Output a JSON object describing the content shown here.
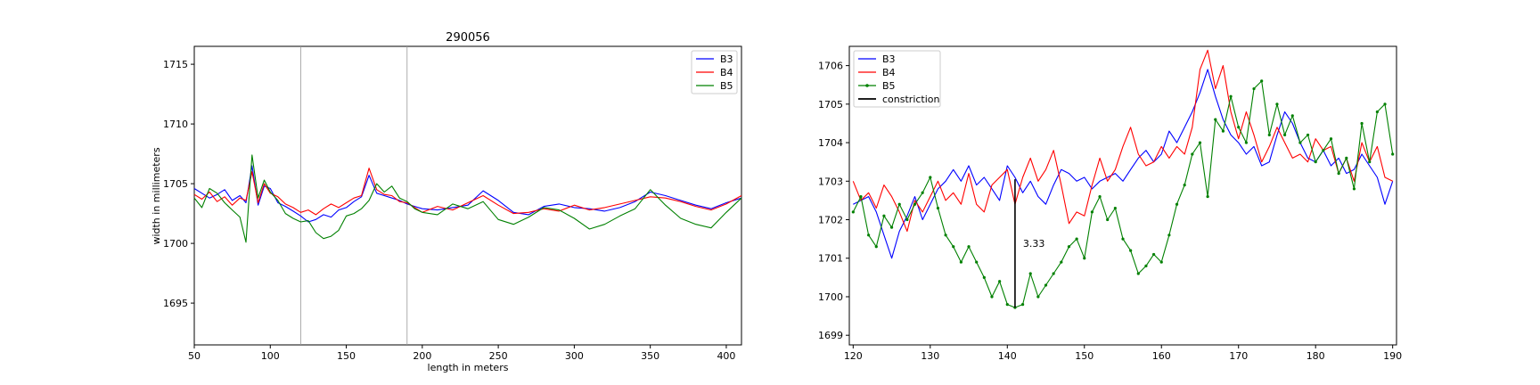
{
  "chart_data": [
    {
      "type": "line",
      "title": "290056",
      "xlabel": "length in meters",
      "ylabel": "width in millimeters",
      "xlim": [
        50,
        410
      ],
      "ylim": [
        1691.5,
        1716.5
      ],
      "xticks": [
        50,
        100,
        150,
        200,
        250,
        300,
        350,
        400
      ],
      "yticks": [
        1695,
        1700,
        1705,
        1710,
        1715
      ],
      "vlines": [
        120,
        190
      ],
      "legend_position": "top-right",
      "grid": false,
      "series": [
        {
          "name": "B3",
          "color": "#0000ff",
          "x": [
            50,
            55,
            60,
            65,
            70,
            75,
            80,
            84,
            88,
            92,
            96,
            100,
            105,
            110,
            115,
            120,
            125,
            130,
            135,
            140,
            145,
            150,
            155,
            160,
            165,
            170,
            175,
            180,
            185,
            190,
            195,
            200,
            210,
            220,
            230,
            240,
            250,
            260,
            270,
            280,
            290,
            300,
            310,
            320,
            330,
            340,
            350,
            360,
            370,
            380,
            390,
            400,
            410
          ],
          "y": [
            1704.6,
            1704.2,
            1703.8,
            1704.1,
            1704.5,
            1703.6,
            1704.0,
            1703.4,
            1706.5,
            1703.2,
            1704.8,
            1704.6,
            1703.4,
            1703.1,
            1702.7,
            1702.3,
            1701.8,
            1702.0,
            1702.4,
            1702.2,
            1702.8,
            1703.0,
            1703.5,
            1703.9,
            1705.7,
            1704.2,
            1704.0,
            1703.8,
            1703.6,
            1703.3,
            1703.1,
            1702.9,
            1702.8,
            1703.0,
            1703.2,
            1704.4,
            1703.6,
            1702.6,
            1702.4,
            1703.1,
            1703.3,
            1703.0,
            1702.9,
            1702.7,
            1703.0,
            1703.5,
            1704.3,
            1704.0,
            1703.6,
            1703.2,
            1702.9,
            1703.4,
            1703.8
          ]
        },
        {
          "name": "B4",
          "color": "#ff0000",
          "x": [
            50,
            55,
            60,
            65,
            70,
            75,
            80,
            84,
            88,
            92,
            96,
            100,
            105,
            110,
            115,
            120,
            125,
            130,
            135,
            140,
            145,
            150,
            155,
            160,
            165,
            170,
            175,
            180,
            185,
            190,
            195,
            200,
            210,
            220,
            230,
            240,
            250,
            260,
            270,
            280,
            290,
            300,
            310,
            320,
            330,
            340,
            350,
            360,
            370,
            380,
            390,
            400,
            410
          ],
          "y": [
            1704.1,
            1703.7,
            1704.3,
            1703.5,
            1703.9,
            1703.2,
            1703.8,
            1703.6,
            1706.0,
            1703.4,
            1705.0,
            1704.2,
            1703.9,
            1703.3,
            1703.0,
            1702.6,
            1702.8,
            1702.4,
            1702.9,
            1703.3,
            1703.0,
            1703.4,
            1703.8,
            1704.0,
            1706.3,
            1704.5,
            1704.1,
            1704.0,
            1703.5,
            1703.4,
            1703.0,
            1702.6,
            1703.1,
            1702.8,
            1703.4,
            1704.0,
            1703.2,
            1702.5,
            1702.6,
            1702.9,
            1702.7,
            1703.2,
            1702.8,
            1703.0,
            1703.3,
            1703.6,
            1703.9,
            1703.8,
            1703.5,
            1703.1,
            1702.8,
            1703.3,
            1704.0
          ]
        },
        {
          "name": "B5",
          "color": "#008000",
          "x": [
            50,
            55,
            60,
            65,
            70,
            75,
            80,
            84,
            88,
            92,
            96,
            100,
            105,
            110,
            115,
            120,
            125,
            130,
            135,
            140,
            145,
            150,
            155,
            160,
            165,
            170,
            175,
            180,
            185,
            190,
            195,
            200,
            210,
            220,
            230,
            240,
            250,
            260,
            270,
            280,
            290,
            300,
            310,
            320,
            330,
            340,
            350,
            360,
            370,
            380,
            390,
            400,
            410
          ],
          "y": [
            1703.8,
            1703.0,
            1704.6,
            1704.2,
            1703.4,
            1702.8,
            1702.2,
            1700.1,
            1707.4,
            1703.8,
            1705.3,
            1704.3,
            1703.6,
            1702.5,
            1702.1,
            1701.8,
            1701.9,
            1700.9,
            1700.4,
            1700.6,
            1701.1,
            1702.3,
            1702.5,
            1702.9,
            1703.6,
            1705.0,
            1704.3,
            1704.8,
            1703.8,
            1703.5,
            1702.9,
            1702.6,
            1702.4,
            1703.3,
            1702.9,
            1703.5,
            1702.0,
            1701.6,
            1702.2,
            1703.0,
            1702.8,
            1702.1,
            1701.2,
            1701.6,
            1702.3,
            1702.9,
            1704.5,
            1703.2,
            1702.1,
            1701.6,
            1701.3,
            1702.6,
            1703.8
          ]
        }
      ]
    },
    {
      "type": "line",
      "title": "",
      "xlabel": "",
      "ylabel": "",
      "xlim": [
        119.5,
        190.5
      ],
      "ylim": [
        1698.75,
        1706.5
      ],
      "xticks": [
        120,
        130,
        140,
        150,
        160,
        170,
        180,
        190
      ],
      "yticks": [
        1699,
        1700,
        1701,
        1702,
        1703,
        1704,
        1705,
        1706
      ],
      "legend_position": "top-left",
      "grid": false,
      "constriction": {
        "x": 141,
        "y_top": 1703.05,
        "y_bottom": 1699.72,
        "label": "3.33"
      },
      "series": [
        {
          "name": "B3",
          "color": "#0000ff",
          "marker": false,
          "x": [
            120,
            121,
            122,
            123,
            124,
            125,
            126,
            127,
            128,
            129,
            130,
            131,
            132,
            133,
            134,
            135,
            136,
            137,
            138,
            139,
            140,
            141,
            142,
            143,
            144,
            145,
            146,
            147,
            148,
            149,
            150,
            151,
            152,
            153,
            154,
            155,
            156,
            157,
            158,
            159,
            160,
            161,
            162,
            163,
            164,
            165,
            166,
            167,
            168,
            169,
            170,
            171,
            172,
            173,
            174,
            175,
            176,
            177,
            178,
            179,
            180,
            181,
            182,
            183,
            184,
            185,
            186,
            187,
            188,
            189,
            190
          ],
          "y": [
            1702.4,
            1702.5,
            1702.6,
            1702.2,
            1701.6,
            1701.0,
            1701.7,
            1702.1,
            1702.6,
            1702.0,
            1702.4,
            1702.8,
            1703.0,
            1703.3,
            1703.0,
            1703.4,
            1702.9,
            1703.1,
            1702.8,
            1702.5,
            1703.4,
            1703.1,
            1702.7,
            1703.0,
            1702.6,
            1702.4,
            1702.9,
            1703.3,
            1703.2,
            1703.0,
            1703.1,
            1702.8,
            1703.0,
            1703.1,
            1703.2,
            1703.0,
            1703.3,
            1703.6,
            1703.8,
            1703.5,
            1703.7,
            1704.3,
            1704.0,
            1704.4,
            1704.8,
            1705.3,
            1705.9,
            1705.2,
            1704.6,
            1704.2,
            1704.0,
            1703.7,
            1703.9,
            1703.4,
            1703.5,
            1704.2,
            1704.8,
            1704.5,
            1704.0,
            1703.6,
            1703.5,
            1703.8,
            1703.4,
            1703.6,
            1703.2,
            1703.3,
            1703.7,
            1703.4,
            1703.1,
            1702.4,
            1703.0
          ]
        },
        {
          "name": "B4",
          "color": "#ff0000",
          "marker": false,
          "x": [
            120,
            121,
            122,
            123,
            124,
            125,
            126,
            127,
            128,
            129,
            130,
            131,
            132,
            133,
            134,
            135,
            136,
            137,
            138,
            139,
            140,
            141,
            142,
            143,
            144,
            145,
            146,
            147,
            148,
            149,
            150,
            151,
            152,
            153,
            154,
            155,
            156,
            157,
            158,
            159,
            160,
            161,
            162,
            163,
            164,
            165,
            166,
            167,
            168,
            169,
            170,
            171,
            172,
            173,
            174,
            175,
            176,
            177,
            178,
            179,
            180,
            181,
            182,
            183,
            184,
            185,
            186,
            187,
            188,
            189,
            190
          ],
          "y": [
            1703.0,
            1702.5,
            1702.7,
            1702.3,
            1702.9,
            1702.6,
            1702.2,
            1701.7,
            1702.5,
            1702.2,
            1702.6,
            1703.0,
            1702.5,
            1702.7,
            1702.4,
            1703.2,
            1702.4,
            1702.2,
            1702.9,
            1703.1,
            1703.3,
            1702.4,
            1703.1,
            1703.6,
            1703.0,
            1703.3,
            1703.8,
            1702.9,
            1701.9,
            1702.2,
            1702.1,
            1702.9,
            1703.6,
            1703.0,
            1703.3,
            1703.9,
            1704.4,
            1703.7,
            1703.4,
            1703.5,
            1703.9,
            1703.6,
            1703.9,
            1703.7,
            1704.4,
            1705.9,
            1706.4,
            1705.4,
            1706.0,
            1704.8,
            1704.1,
            1704.8,
            1704.2,
            1703.5,
            1703.9,
            1704.4,
            1704.0,
            1703.6,
            1703.7,
            1703.5,
            1704.1,
            1703.8,
            1703.9,
            1703.2,
            1703.6,
            1703.0,
            1704.0,
            1703.5,
            1703.9,
            1703.1,
            1703.0
          ]
        },
        {
          "name": "B5",
          "color": "#008000",
          "marker": true,
          "x": [
            120,
            121,
            122,
            123,
            124,
            125,
            126,
            127,
            128,
            129,
            130,
            131,
            132,
            133,
            134,
            135,
            136,
            137,
            138,
            139,
            140,
            141,
            142,
            143,
            144,
            145,
            146,
            147,
            148,
            149,
            150,
            151,
            152,
            153,
            154,
            155,
            156,
            157,
            158,
            159,
            160,
            161,
            162,
            163,
            164,
            165,
            166,
            167,
            168,
            169,
            170,
            171,
            172,
            173,
            174,
            175,
            176,
            177,
            178,
            179,
            180,
            181,
            182,
            183,
            184,
            185,
            186,
            187,
            188,
            189,
            190
          ],
          "y": [
            1702.2,
            1702.6,
            1701.6,
            1701.3,
            1702.1,
            1701.8,
            1702.4,
            1702.0,
            1702.4,
            1702.7,
            1703.1,
            1702.3,
            1701.6,
            1701.3,
            1700.9,
            1701.3,
            1700.9,
            1700.5,
            1700.0,
            1700.4,
            1699.8,
            1699.72,
            1699.8,
            1700.6,
            1700.0,
            1700.3,
            1700.6,
            1700.9,
            1701.3,
            1701.5,
            1701.0,
            1702.2,
            1702.6,
            1702.0,
            1702.3,
            1701.5,
            1701.2,
            1700.6,
            1700.8,
            1701.1,
            1700.9,
            1701.6,
            1702.4,
            1702.9,
            1703.7,
            1704.0,
            1702.6,
            1704.6,
            1704.3,
            1705.2,
            1704.4,
            1704.0,
            1705.4,
            1705.6,
            1704.2,
            1705.0,
            1704.2,
            1704.7,
            1704.0,
            1704.2,
            1703.5,
            1703.8,
            1704.1,
            1703.2,
            1703.6,
            1702.8,
            1704.5,
            1703.5,
            1704.8,
            1705.0,
            1703.7
          ]
        }
      ]
    }
  ]
}
